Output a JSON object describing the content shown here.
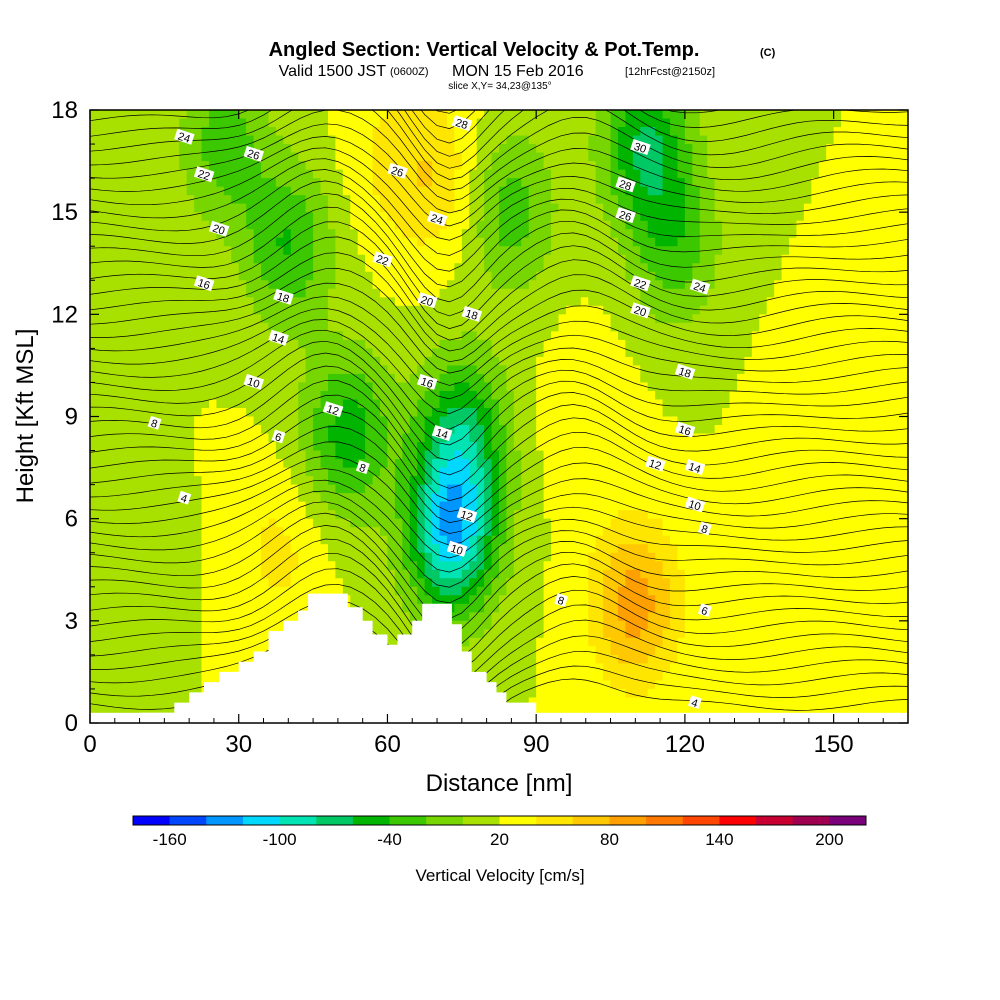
{
  "header": {
    "title": "Angled Section: Vertical Velocity & Pot.Temp.",
    "copyright": "(C)",
    "valid_prefix": "Valid 1500 JST",
    "valid_utc": "(0600Z)",
    "valid_date": "MON 15 Feb 2016",
    "forecast": "[12hrFcst@2150z]",
    "slice": "slice X,Y= 34,23@135°"
  },
  "chart_data": {
    "type": "heatmap",
    "title": "Angled Section: Vertical Velocity & Pot.Temp.",
    "xlabel": "Distance [nm]",
    "ylabel": "Height [Kft MSL]",
    "xlim": [
      0,
      165
    ],
    "ylim": [
      0,
      18
    ],
    "x_ticks": [
      "0",
      "30",
      "60",
      "90",
      "120",
      "150"
    ],
    "x_tick_values": [
      0,
      30,
      60,
      90,
      120,
      150
    ],
    "y_ticks": [
      "0",
      "3",
      "6",
      "9",
      "12",
      "15",
      "18"
    ],
    "y_tick_values": [
      0,
      3,
      6,
      9,
      12,
      15,
      18
    ],
    "colorbar": {
      "label": "Vertical Velocity [cm/s]",
      "tick_labels": [
        "-160",
        "-100",
        "-40",
        "20",
        "80",
        "140",
        "200"
      ],
      "tick_values": [
        -160,
        -100,
        -40,
        20,
        80,
        140,
        200
      ],
      "range": [
        -180,
        220
      ],
      "step": 20,
      "colors": [
        "#0000ff",
        "#0046ff",
        "#0096ff",
        "#00d8ff",
        "#00e4b4",
        "#00c864",
        "#00b400",
        "#3cc800",
        "#78d600",
        "#a8e000",
        "#ffff00",
        "#ffe600",
        "#ffc800",
        "#ffa000",
        "#ff7800",
        "#ff4600",
        "#ff0000",
        "#c80032",
        "#a00050",
        "#780078"
      ]
    },
    "terrain": [
      [
        10,
        0.3
      ],
      [
        17,
        0.6
      ],
      [
        20,
        0.9
      ],
      [
        23,
        1.2
      ],
      [
        26,
        1.5
      ],
      [
        30,
        1.8
      ],
      [
        33,
        2.1
      ],
      [
        36,
        2.7
      ],
      [
        39,
        3.0
      ],
      [
        42,
        3.3
      ],
      [
        44,
        3.8
      ],
      [
        50,
        3.8
      ],
      [
        52,
        3.4
      ],
      [
        55,
        3.0
      ],
      [
        57,
        2.6
      ],
      [
        60,
        2.3
      ],
      [
        62,
        2.6
      ],
      [
        65,
        3.0
      ],
      [
        67,
        3.5
      ],
      [
        72,
        3.5
      ],
      [
        73,
        2.9
      ],
      [
        75,
        2.1
      ],
      [
        77,
        1.5
      ],
      [
        80,
        1.2
      ],
      [
        82,
        0.9
      ],
      [
        84,
        0.6
      ],
      [
        90,
        0.3
      ]
    ],
    "velocity_field": {
      "background": 20,
      "features": [
        {
          "x": 73,
          "y": 5.5,
          "value": -110
        },
        {
          "x": 75,
          "y": 8.5,
          "value": -60
        },
        {
          "x": 52,
          "y": 8.5,
          "value": -50
        },
        {
          "x": 40,
          "y": 14.0,
          "value": -40
        },
        {
          "x": 27,
          "y": 17.0,
          "value": -30
        },
        {
          "x": 112,
          "y": 17.0,
          "value": -60
        },
        {
          "x": 118,
          "y": 14.0,
          "value": -30
        },
        {
          "x": 85,
          "y": 15.0,
          "value": -30
        },
        {
          "x": 70,
          "y": 16.0,
          "value": 55
        },
        {
          "x": 60,
          "y": 16.5,
          "value": 40
        },
        {
          "x": 110,
          "y": 3.5,
          "value": 90
        },
        {
          "x": 100,
          "y": 9.0,
          "value": 35
        },
        {
          "x": 38,
          "y": 5.0,
          "value": 45
        },
        {
          "x": 147,
          "y": 8.5,
          "value": 40
        },
        {
          "x": 8,
          "y": 4.5,
          "value": 5
        }
      ]
    },
    "theta_contours": {
      "levels": [
        4,
        6,
        8,
        10,
        12,
        14,
        16,
        18,
        20,
        22,
        24,
        26,
        28,
        30
      ],
      "labels": [
        {
          "text": "24",
          "x": 19,
          "y": 17.2
        },
        {
          "text": "26",
          "x": 33,
          "y": 16.7
        },
        {
          "text": "22",
          "x": 23,
          "y": 16.1
        },
        {
          "text": "20",
          "x": 26,
          "y": 14.5
        },
        {
          "text": "16",
          "x": 23,
          "y": 12.9
        },
        {
          "text": "18",
          "x": 39,
          "y": 12.5
        },
        {
          "text": "14",
          "x": 38,
          "y": 11.3
        },
        {
          "text": "10",
          "x": 33,
          "y": 10.0
        },
        {
          "text": "12",
          "x": 49,
          "y": 9.2
        },
        {
          "text": "8",
          "x": 13,
          "y": 8.8
        },
        {
          "text": "6",
          "x": 38,
          "y": 8.4
        },
        {
          "text": "8",
          "x": 55,
          "y": 7.5
        },
        {
          "text": "4",
          "x": 19,
          "y": 6.6
        },
        {
          "text": "28",
          "x": 75,
          "y": 17.6
        },
        {
          "text": "26",
          "x": 62,
          "y": 16.2
        },
        {
          "text": "24",
          "x": 70,
          "y": 14.8
        },
        {
          "text": "22",
          "x": 59,
          "y": 13.6
        },
        {
          "text": "20",
          "x": 68,
          "y": 12.4
        },
        {
          "text": "18",
          "x": 77,
          "y": 12.0
        },
        {
          "text": "16",
          "x": 68,
          "y": 10.0
        },
        {
          "text": "14",
          "x": 71,
          "y": 8.5
        },
        {
          "text": "12",
          "x": 76,
          "y": 6.1
        },
        {
          "text": "10",
          "x": 74,
          "y": 5.1
        },
        {
          "text": "8",
          "x": 95,
          "y": 3.6
        },
        {
          "text": "30",
          "x": 111,
          "y": 16.9
        },
        {
          "text": "28",
          "x": 108,
          "y": 15.8
        },
        {
          "text": "26",
          "x": 108,
          "y": 14.9
        },
        {
          "text": "22",
          "x": 111,
          "y": 12.9
        },
        {
          "text": "24",
          "x": 123,
          "y": 12.8
        },
        {
          "text": "20",
          "x": 111,
          "y": 12.1
        },
        {
          "text": "18",
          "x": 120,
          "y": 10.3
        },
        {
          "text": "16",
          "x": 120,
          "y": 8.6
        },
        {
          "text": "12",
          "x": 114,
          "y": 7.6
        },
        {
          "text": "14",
          "x": 122,
          "y": 7.5
        },
        {
          "text": "10",
          "x": 122,
          "y": 6.4
        },
        {
          "text": "8",
          "x": 124,
          "y": 5.7
        },
        {
          "text": "6",
          "x": 124,
          "y": 3.3
        },
        {
          "text": "4",
          "x": 122,
          "y": 0.6
        }
      ]
    }
  }
}
